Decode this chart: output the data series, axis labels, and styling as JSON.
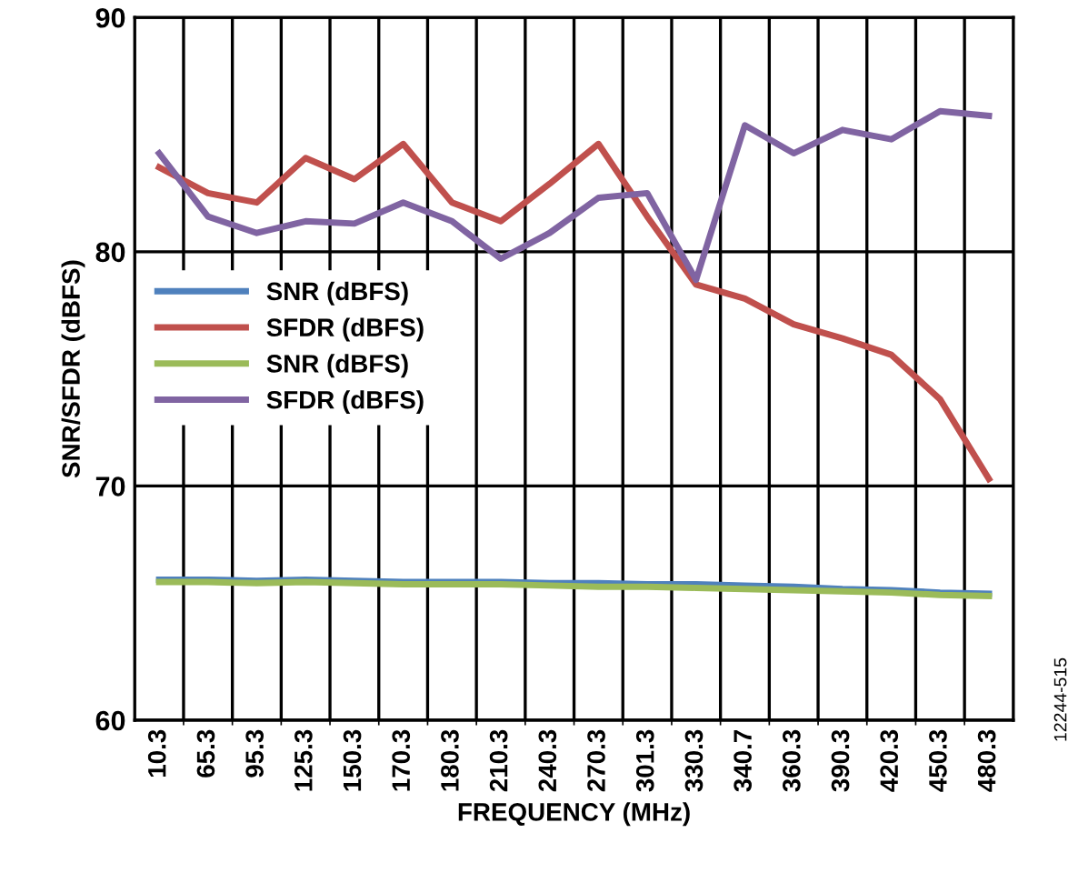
{
  "chart_data": {
    "type": "line",
    "xlabel": "FREQUENCY (MHz)",
    "ylabel": "SNR/SFDR (dBFS)",
    "categories": [
      "10.3",
      "65.3",
      "95.3",
      "125.3",
      "150.3",
      "170.3",
      "180.3",
      "210.3",
      "240.3",
      "270.3",
      "301.3",
      "330.3",
      "340.7",
      "360.3",
      "390.3",
      "420.3",
      "450.3",
      "480.3"
    ],
    "series": [
      {
        "name": "SNR (dBFS)",
        "color": "#4f81bd",
        "values": [
          66.0,
          66.0,
          65.95,
          66.0,
          65.95,
          65.9,
          65.9,
          65.9,
          65.85,
          65.85,
          65.8,
          65.8,
          65.75,
          65.7,
          65.6,
          65.55,
          65.45,
          65.4
        ]
      },
      {
        "name": "SFDR (dBFS)",
        "color": "#c0504d",
        "values": [
          83.6,
          82.5,
          82.1,
          84.0,
          83.1,
          84.6,
          82.1,
          81.3,
          82.9,
          84.6,
          81.5,
          78.6,
          78.0,
          76.9,
          76.3,
          75.6,
          73.7,
          70.3
        ]
      },
      {
        "name": "SNR (dBFS)",
        "color": "#9bbb59",
        "values": [
          65.9,
          65.9,
          65.85,
          65.9,
          65.85,
          65.8,
          65.8,
          65.8,
          65.75,
          65.7,
          65.7,
          65.65,
          65.6,
          65.55,
          65.5,
          65.45,
          65.35,
          65.3
        ]
      },
      {
        "name": "SFDR (dBFS)",
        "color": "#8064a2",
        "values": [
          84.2,
          81.5,
          80.8,
          81.3,
          81.2,
          82.1,
          81.3,
          79.7,
          80.8,
          82.3,
          82.5,
          78.8,
          85.4,
          84.2,
          85.2,
          84.8,
          86.0,
          85.8
        ]
      }
    ],
    "ylim": [
      60,
      90
    ],
    "yticks": [
      60,
      70,
      80,
      90
    ],
    "grid": true,
    "legend": "center left",
    "marker": "none",
    "line_style": "solid",
    "annotations": [
      "12244-515"
    ]
  }
}
